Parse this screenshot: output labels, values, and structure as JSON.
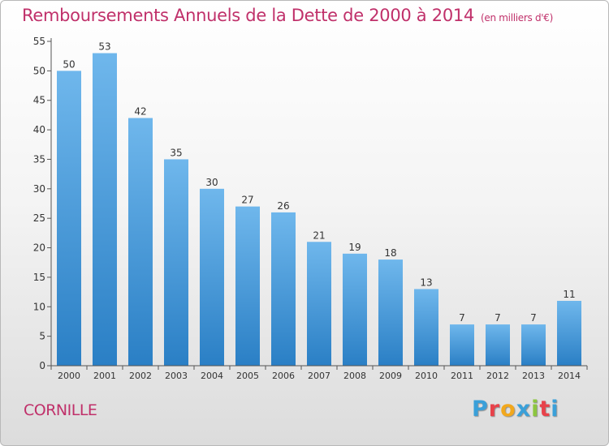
{
  "header": {
    "title": "Remboursements Annuels de la Dette de 2000 à 2014",
    "unit": "(en milliers d'€)"
  },
  "footer": {
    "commune": "CORNILLE",
    "brand": "Proxiti",
    "brand_letters": [
      "P",
      "r",
      "o",
      "x",
      "i",
      "t",
      "i"
    ],
    "brand_colors": [
      "#3aa0d9",
      "#e8424a",
      "#f2a81d",
      "#3aa0d9",
      "#8cc63f",
      "#e8424a",
      "#3aa0d9"
    ]
  },
  "colors": {
    "bar_light": "#6fb7ec",
    "bar_dark": "#2a7fc5",
    "title": "#c0306a"
  },
  "chart_data": {
    "type": "bar",
    "title": "Remboursements Annuels de la Dette de 2000 à 2014",
    "xlabel": "",
    "ylabel": "",
    "categories": [
      "2000",
      "2001",
      "2002",
      "2003",
      "2004",
      "2005",
      "2006",
      "2007",
      "2008",
      "2009",
      "2010",
      "2011",
      "2012",
      "2013",
      "2014"
    ],
    "values": [
      50,
      53,
      42,
      35,
      30,
      27,
      26,
      21,
      19,
      18,
      13,
      7,
      7,
      7,
      11
    ],
    "ylim": [
      0,
      55
    ],
    "yticks": [
      0,
      5,
      10,
      15,
      20,
      25,
      30,
      35,
      40,
      45,
      50,
      55
    ],
    "grid": false
  }
}
